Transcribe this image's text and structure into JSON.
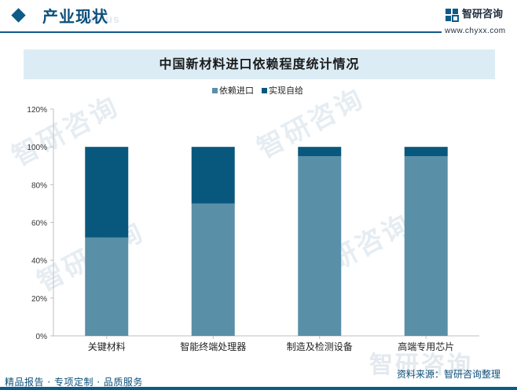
{
  "header": {
    "title": "产业现状",
    "ghost_text": "Status"
  },
  "brand": {
    "name": "智研咨询",
    "url": "www.chyxx.com"
  },
  "watermark": "智研咨询",
  "footer": {
    "left": "精品报告 · 专项定制 · 品质服务",
    "source": "资料来源：智研咨询整理"
  },
  "colors": {
    "import": "#5a8fa8",
    "self": "#08587e",
    "accent": "#0d5b86",
    "panel": "#dcecf5"
  },
  "chart_data": {
    "type": "bar",
    "stacked": true,
    "title": "中国新材料进口依赖程度统计情况",
    "categories": [
      "关键材料",
      "智能终端处理器",
      "制造及检测设备",
      "高端专用芯片"
    ],
    "series": [
      {
        "name": "依赖进口",
        "values": [
          52,
          70,
          95,
          95
        ]
      },
      {
        "name": "实现自给",
        "values": [
          48,
          30,
          5,
          5
        ]
      }
    ],
    "ylim": [
      0,
      120
    ],
    "yticks": [
      "0%",
      "20%",
      "40%",
      "60%",
      "80%",
      "100%",
      "120%"
    ],
    "legend_position": "top-center",
    "grid": false
  }
}
